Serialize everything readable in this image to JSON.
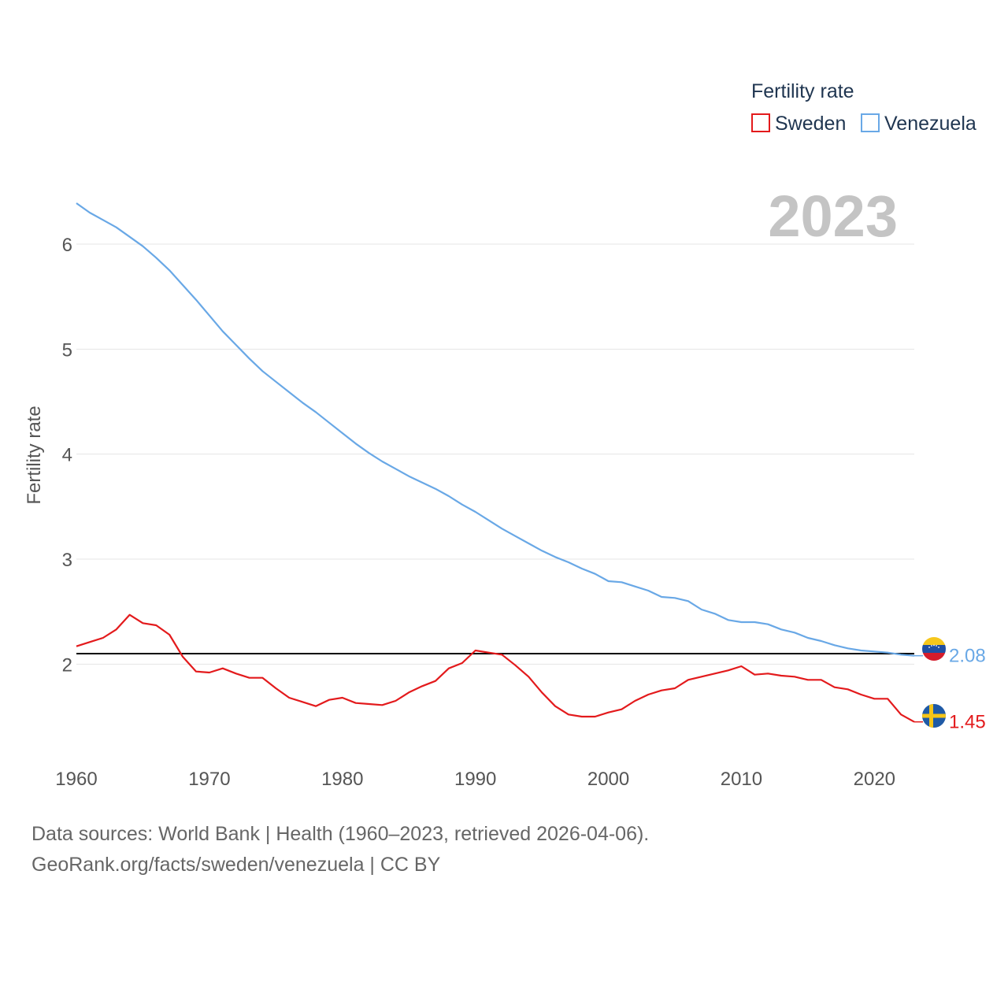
{
  "chart_data": {
    "type": "line",
    "year_label": "2023",
    "ylabel": "Fertility rate",
    "xlabel": "",
    "xlim": [
      1960,
      2023
    ],
    "ylim": [
      1.2,
      6.6
    ],
    "x_ticks": [
      1960,
      1970,
      1980,
      1990,
      2000,
      2010,
      2020
    ],
    "y_ticks": [
      2,
      3,
      4,
      5,
      6
    ],
    "grid": true,
    "legend": {
      "title": "Fertility rate",
      "placement": "top-right",
      "items": [
        {
          "name": "Sweden",
          "color": "#e31a1c"
        },
        {
          "name": "Venezuela",
          "color": "#69a8e6"
        }
      ]
    },
    "reference_line": {
      "value": 2.1,
      "color": "#000000"
    },
    "x": [
      1960,
      1961,
      1962,
      1963,
      1964,
      1965,
      1966,
      1967,
      1968,
      1969,
      1970,
      1971,
      1972,
      1973,
      1974,
      1975,
      1976,
      1977,
      1978,
      1979,
      1980,
      1981,
      1982,
      1983,
      1984,
      1985,
      1986,
      1987,
      1988,
      1989,
      1990,
      1991,
      1992,
      1993,
      1994,
      1995,
      1996,
      1997,
      1998,
      1999,
      2000,
      2001,
      2002,
      2003,
      2004,
      2005,
      2006,
      2007,
      2008,
      2009,
      2010,
      2011,
      2012,
      2013,
      2014,
      2015,
      2016,
      2017,
      2018,
      2019,
      2020,
      2021,
      2022,
      2023
    ],
    "series": [
      {
        "name": "Sweden",
        "color": "#e31a1c",
        "end_label": "1.45",
        "values": [
          2.17,
          2.21,
          2.25,
          2.33,
          2.47,
          2.39,
          2.37,
          2.28,
          2.07,
          1.93,
          1.92,
          1.96,
          1.91,
          1.87,
          1.87,
          1.77,
          1.68,
          1.64,
          1.6,
          1.66,
          1.68,
          1.63,
          1.62,
          1.61,
          1.65,
          1.73,
          1.79,
          1.84,
          1.96,
          2.01,
          2.13,
          2.11,
          2.09,
          1.99,
          1.88,
          1.73,
          1.6,
          1.52,
          1.5,
          1.5,
          1.54,
          1.57,
          1.65,
          1.71,
          1.75,
          1.77,
          1.85,
          1.88,
          1.91,
          1.94,
          1.98,
          1.9,
          1.91,
          1.89,
          1.88,
          1.85,
          1.85,
          1.78,
          1.76,
          1.71,
          1.67,
          1.67,
          1.52,
          1.45
        ]
      },
      {
        "name": "Venezuela",
        "color": "#69a8e6",
        "end_label": "2.08",
        "values": [
          6.39,
          6.3,
          6.23,
          6.16,
          6.07,
          5.98,
          5.87,
          5.75,
          5.61,
          5.47,
          5.32,
          5.17,
          5.04,
          4.91,
          4.79,
          4.69,
          4.59,
          4.49,
          4.4,
          4.3,
          4.2,
          4.1,
          4.01,
          3.93,
          3.86,
          3.79,
          3.73,
          3.67,
          3.6,
          3.52,
          3.45,
          3.37,
          3.29,
          3.22,
          3.15,
          3.08,
          3.02,
          2.97,
          2.91,
          2.86,
          2.79,
          2.78,
          2.74,
          2.7,
          2.64,
          2.63,
          2.6,
          2.52,
          2.48,
          2.42,
          2.4,
          2.4,
          2.38,
          2.33,
          2.3,
          2.25,
          2.22,
          2.18,
          2.15,
          2.13,
          2.12,
          2.11,
          2.09,
          2.08
        ]
      }
    ]
  },
  "footer": {
    "line1": "Data sources: World Bank | Health (1960–2023, retrieved 2026-04-06).",
    "line2": "GeoRank.org/facts/sweden/venezuela | CC BY"
  }
}
